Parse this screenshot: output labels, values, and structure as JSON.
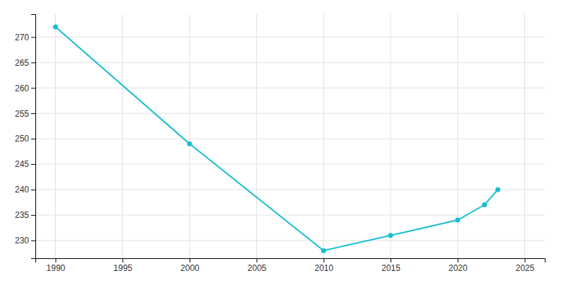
{
  "chart_data": {
    "type": "line",
    "x": [
      1990,
      2000,
      2010,
      2015,
      2020,
      2022,
      2023
    ],
    "values": [
      272,
      249,
      228,
      231,
      234,
      237,
      240
    ],
    "color": "#17becf",
    "marker": "circle",
    "xlim": [
      1988.5,
      2026.5
    ],
    "ylim": [
      226.5,
      274.5
    ],
    "xticks": [
      1990,
      1995,
      2000,
      2005,
      2010,
      2015,
      2020,
      2025
    ],
    "yticks": [
      230,
      235,
      240,
      245,
      250,
      255,
      260,
      265,
      270
    ],
    "grid": true
  }
}
